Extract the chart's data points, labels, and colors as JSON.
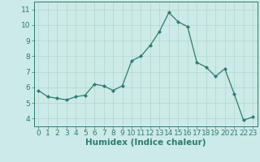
{
  "x": [
    0,
    1,
    2,
    3,
    4,
    5,
    6,
    7,
    8,
    9,
    10,
    11,
    12,
    13,
    14,
    15,
    16,
    17,
    18,
    19,
    20,
    21,
    22,
    23
  ],
  "y": [
    5.8,
    5.4,
    5.3,
    5.2,
    5.4,
    5.5,
    6.2,
    6.1,
    5.8,
    6.1,
    7.7,
    8.0,
    8.7,
    9.6,
    10.8,
    10.2,
    9.9,
    7.6,
    7.3,
    6.7,
    7.2,
    5.6,
    3.9,
    4.1
  ],
  "line_color": "#2e7d6e",
  "marker": "D",
  "marker_size": 2.0,
  "bg_color": "#cceae7",
  "grid_color": "#b5d5d0",
  "xlabel": "Humidex (Indice chaleur)",
  "xlim": [
    -0.5,
    23.5
  ],
  "ylim": [
    3.5,
    11.5
  ],
  "yticks": [
    4,
    5,
    6,
    7,
    8,
    9,
    10,
    11
  ],
  "xticks": [
    0,
    1,
    2,
    3,
    4,
    5,
    6,
    7,
    8,
    9,
    10,
    11,
    12,
    13,
    14,
    15,
    16,
    17,
    18,
    19,
    20,
    21,
    22,
    23
  ],
  "tick_color": "#2e7d6e",
  "label_color": "#2e7d6e",
  "axis_color": "#2e7d6e",
  "xlabel_fontsize": 7.5,
  "tick_labelsize": 6.5
}
